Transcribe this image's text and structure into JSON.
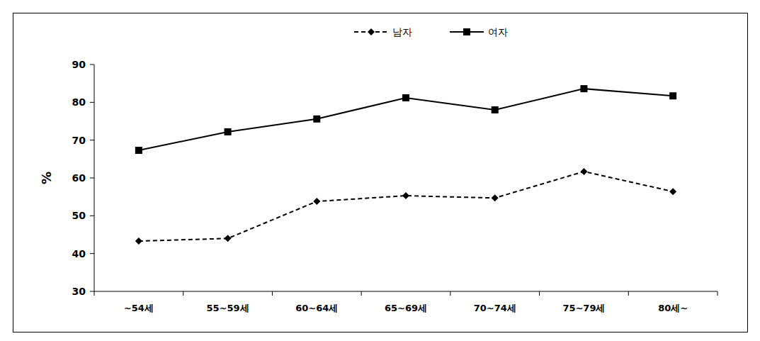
{
  "chart_data": {
    "type": "line",
    "categories": [
      "~54세",
      "55~59세",
      "60~64세",
      "65~69세",
      "70~74세",
      "75~79세",
      "80세~"
    ],
    "series": [
      {
        "name": "남자",
        "color": "#000000",
        "marker": "diamond",
        "line_style": "dashed",
        "values": [
          43.3,
          44.0,
          53.8,
          55.3,
          54.7,
          61.7,
          56.4
        ]
      },
      {
        "name": "여자",
        "color": "#000000",
        "marker": "square",
        "line_style": "solid",
        "values": [
          67.3,
          72.2,
          75.6,
          81.2,
          78.0,
          83.6,
          81.7
        ]
      }
    ],
    "y_label": "%",
    "ylim": [
      30,
      90
    ],
    "yticks": [
      30,
      40,
      50,
      60,
      70,
      80,
      90
    ],
    "grid": false,
    "legend": "top"
  }
}
